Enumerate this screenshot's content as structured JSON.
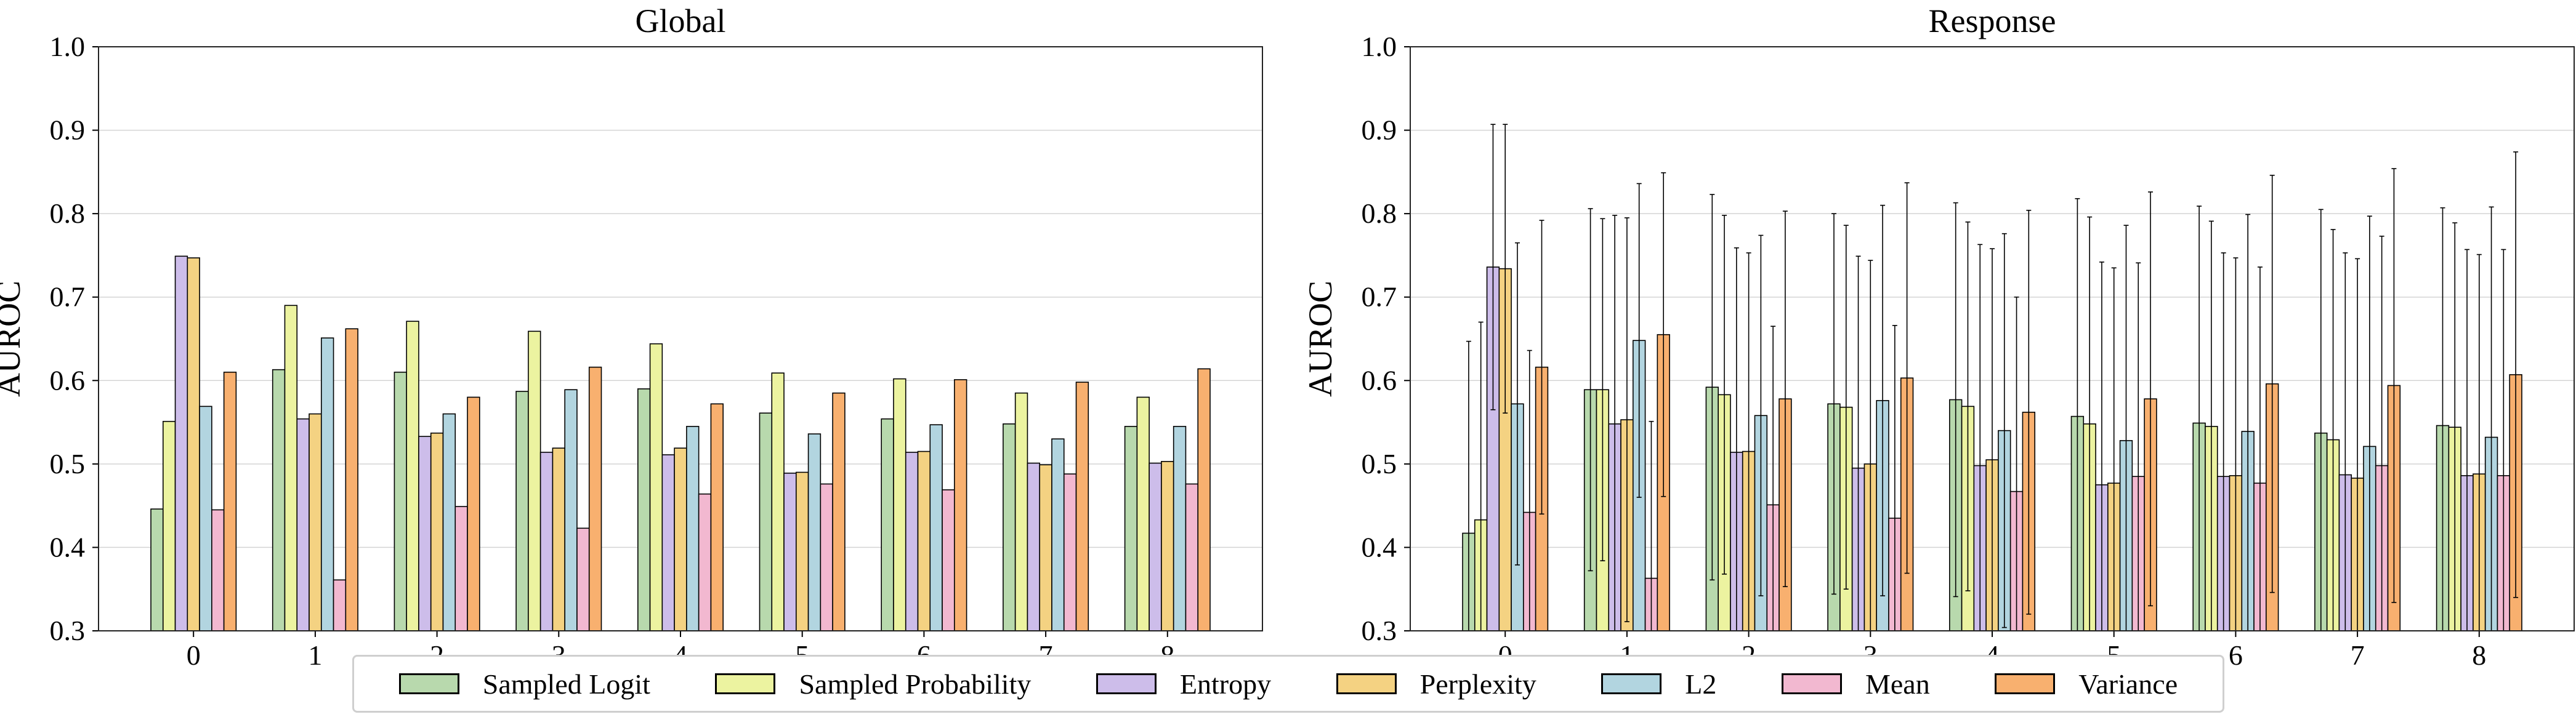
{
  "chart_data": [
    {
      "type": "bar",
      "title": "Global",
      "xlabel": "Token Index",
      "ylabel": "AUROC",
      "ylim": [
        0.3,
        1.0
      ],
      "xlim": [
        -0.78,
        8.78
      ],
      "yticks": [
        "0.3",
        "0.4",
        "0.5",
        "0.6",
        "0.7",
        "0.8",
        "0.9",
        "1.0"
      ],
      "grid": true,
      "categories": [
        "0",
        "1",
        "2",
        "3",
        "4",
        "5",
        "6",
        "7",
        "8"
      ],
      "series": [
        {
          "name": "Sampled Logit",
          "values": [
            0.446,
            0.613,
            0.61,
            0.587,
            0.59,
            0.561,
            0.554,
            0.548,
            0.545
          ]
        },
        {
          "name": "Sampled Probability",
          "values": [
            0.551,
            0.69,
            0.671,
            0.659,
            0.644,
            0.609,
            0.602,
            0.585,
            0.58
          ]
        },
        {
          "name": "Entropy",
          "values": [
            0.749,
            0.554,
            0.533,
            0.514,
            0.511,
            0.489,
            0.514,
            0.501,
            0.501
          ]
        },
        {
          "name": "Perplexity",
          "values": [
            0.747,
            0.56,
            0.537,
            0.519,
            0.519,
            0.49,
            0.515,
            0.499,
            0.503
          ]
        },
        {
          "name": "L2",
          "values": [
            0.569,
            0.651,
            0.56,
            0.589,
            0.545,
            0.536,
            0.547,
            0.53,
            0.545
          ]
        },
        {
          "name": "Mean",
          "values": [
            0.445,
            0.361,
            0.449,
            0.423,
            0.464,
            0.476,
            0.469,
            0.488,
            0.476
          ]
        },
        {
          "name": "Variance",
          "values": [
            0.61,
            0.662,
            0.58,
            0.616,
            0.572,
            0.585,
            0.601,
            0.598,
            0.614
          ]
        }
      ]
    },
    {
      "type": "bar",
      "title": "Response",
      "xlabel": "Token Index",
      "ylabel": "AUROC",
      "ylim": [
        0.3,
        1.0
      ],
      "xlim": [
        -0.78,
        8.78
      ],
      "yticks": [
        "0.3",
        "0.4",
        "0.5",
        "0.6",
        "0.7",
        "0.8",
        "0.9",
        "1.0"
      ],
      "grid": true,
      "categories": [
        "0",
        "1",
        "2",
        "3",
        "4",
        "5",
        "6",
        "7",
        "8"
      ],
      "series": [
        {
          "name": "Sampled Logit",
          "values": [
            0.417,
            0.589,
            0.592,
            0.572,
            0.577,
            0.557,
            0.549,
            0.537,
            0.546
          ],
          "errors": [
            0.23,
            0.217,
            0.231,
            0.228,
            0.236,
            0.261,
            0.26,
            0.268,
            0.261
          ]
        },
        {
          "name": "Sampled Probability",
          "values": [
            0.433,
            0.589,
            0.583,
            0.568,
            0.569,
            0.548,
            0.545,
            0.529,
            0.544
          ],
          "errors": [
            0.237,
            0.205,
            0.215,
            0.218,
            0.221,
            0.248,
            0.246,
            0.252,
            0.245
          ]
        },
        {
          "name": "Entropy",
          "values": [
            0.736,
            0.548,
            0.514,
            0.495,
            0.498,
            0.475,
            0.485,
            0.487,
            0.486
          ],
          "errors": [
            0.171,
            0.25,
            0.245,
            0.254,
            0.265,
            0.267,
            0.268,
            0.266,
            0.271
          ]
        },
        {
          "name": "Perplexity",
          "values": [
            0.734,
            0.553,
            0.515,
            0.5,
            0.505,
            0.477,
            0.486,
            0.483,
            0.488
          ],
          "errors": [
            0.173,
            0.242,
            0.238,
            0.244,
            0.253,
            0.258,
            0.261,
            0.263,
            0.263
          ]
        },
        {
          "name": "L2",
          "values": [
            0.572,
            0.648,
            0.558,
            0.576,
            0.54,
            0.528,
            0.539,
            0.521,
            0.532
          ],
          "errors": [
            0.193,
            0.188,
            0.216,
            0.234,
            0.236,
            0.258,
            0.26,
            0.276,
            0.276
          ]
        },
        {
          "name": "Mean",
          "values": [
            0.442,
            0.363,
            0.451,
            0.435,
            0.467,
            0.485,
            0.477,
            0.498,
            0.486
          ],
          "errors": [
            0.194,
            0.188,
            0.214,
            0.231,
            0.233,
            0.256,
            0.259,
            0.275,
            0.271
          ]
        },
        {
          "name": "Variance",
          "values": [
            0.616,
            0.655,
            0.578,
            0.603,
            0.562,
            0.578,
            0.596,
            0.594,
            0.607
          ],
          "errors": [
            0.176,
            0.194,
            0.225,
            0.234,
            0.242,
            0.248,
            0.25,
            0.26,
            0.267
          ]
        }
      ]
    }
  ],
  "legend": {
    "placement": "bottom-center",
    "items": [
      {
        "label": "Sampled Logit",
        "color": "#b8d9ad"
      },
      {
        "label": "Sampled Probability",
        "color": "#ecf3a0"
      },
      {
        "label": "Entropy",
        "color": "#cdbdea"
      },
      {
        "label": "Perplexity",
        "color": "#f4d282"
      },
      {
        "label": "L2",
        "color": "#b2d5e0"
      },
      {
        "label": "Mean",
        "color": "#f2b8d0"
      },
      {
        "label": "Variance",
        "color": "#f8b06f"
      }
    ]
  }
}
